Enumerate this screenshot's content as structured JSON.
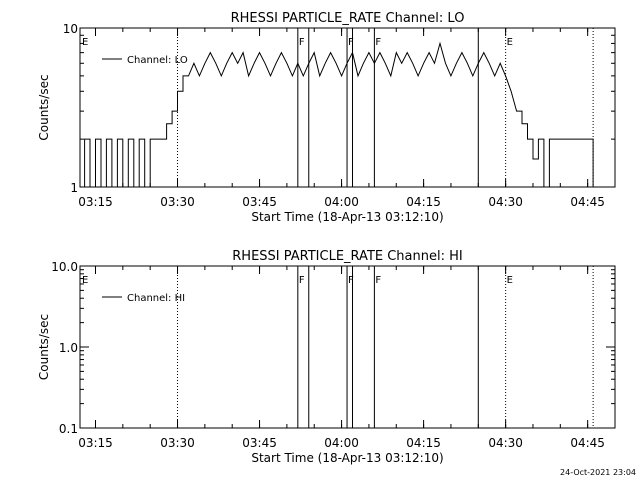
{
  "chart_data": [
    {
      "type": "line",
      "title": "RHESSI PARTICLE_RATE Channel: LO",
      "xlabel": "Start Time (18-Apr-13 03:12:10)",
      "ylabel": "Counts/sec",
      "yscale": "log",
      "ylim": [
        1,
        10
      ],
      "ytick_labels": [
        "1",
        "10"
      ],
      "xlim": [
        "03:12:10",
        "04:50:00"
      ],
      "xtick_labels": [
        "03:15",
        "03:30",
        "03:45",
        "04:00",
        "04:15",
        "04:30",
        "04:45"
      ],
      "legend_entry": "Channel: LO",
      "legend_placement": "top-left",
      "grid": false,
      "dotted_lines": [
        "03:30",
        "04:30",
        "04:46"
      ],
      "solid_lines": [
        "03:52",
        "03:54",
        "04:01",
        "04:02",
        "04:06",
        "04:25"
      ],
      "flags": [
        {
          "label": "E",
          "x": "03:12"
        },
        {
          "label": "F",
          "x": "03:52"
        },
        {
          "label": "F",
          "x": "04:01"
        },
        {
          "label": "F",
          "x": "04:06"
        },
        {
          "label": "E",
          "x": "04:30"
        }
      ],
      "series": [
        {
          "points": [
            [
              "03:13",
              1
            ],
            [
              "03:13",
              2
            ],
            [
              "03:14",
              2
            ],
            [
              "03:14",
              1
            ],
            [
              "03:15",
              1
            ],
            [
              "03:15",
              2
            ],
            [
              "03:16",
              2
            ],
            [
              "03:16",
              1
            ],
            [
              "03:17",
              1
            ],
            [
              "03:17",
              2
            ],
            [
              "03:18",
              2
            ],
            [
              "03:18",
              1
            ],
            [
              "03:19",
              1
            ],
            [
              "03:19",
              2
            ],
            [
              "03:20",
              2
            ],
            [
              "03:20",
              1
            ],
            [
              "03:21",
              1
            ],
            [
              "03:21",
              2
            ],
            [
              "03:22",
              2
            ],
            [
              "03:22",
              1
            ],
            [
              "03:23",
              1
            ],
            [
              "03:23",
              2
            ],
            [
              "03:24",
              2
            ],
            [
              "03:24",
              1
            ],
            [
              "03:25",
              1
            ],
            [
              "03:25",
              2
            ],
            [
              "03:28",
              2
            ],
            [
              "03:28",
              2.5
            ],
            [
              "03:29",
              2.5
            ],
            [
              "03:29",
              3
            ],
            [
              "03:30",
              3
            ],
            [
              "03:30",
              4
            ],
            [
              "03:31",
              4
            ],
            [
              "03:31",
              5
            ],
            [
              "03:32",
              5
            ],
            [
              "03:33",
              6
            ],
            [
              "03:34",
              5
            ],
            [
              "03:35",
              6
            ],
            [
              "03:36",
              7
            ],
            [
              "03:37",
              6
            ],
            [
              "03:38",
              5
            ],
            [
              "03:39",
              6
            ],
            [
              "03:40",
              7
            ],
            [
              "03:41",
              6
            ],
            [
              "03:42",
              7
            ],
            [
              "03:43",
              5
            ],
            [
              "03:44",
              6
            ],
            [
              "03:45",
              7
            ],
            [
              "03:46",
              6
            ],
            [
              "03:47",
              5
            ],
            [
              "03:48",
              6
            ],
            [
              "03:49",
              7
            ],
            [
              "03:50",
              6
            ],
            [
              "03:51",
              5
            ],
            [
              "03:52",
              6
            ],
            [
              "03:53",
              5
            ],
            [
              "03:54",
              6
            ],
            [
              "03:55",
              7
            ],
            [
              "03:56",
              5
            ],
            [
              "03:57",
              6
            ],
            [
              "03:58",
              7
            ],
            [
              "03:59",
              6
            ],
            [
              "04:00",
              5
            ],
            [
              "04:01",
              6
            ],
            [
              "04:02",
              7
            ],
            [
              "04:03",
              5
            ],
            [
              "04:04",
              6
            ],
            [
              "04:05",
              7
            ],
            [
              "04:06",
              6
            ],
            [
              "04:07",
              7
            ],
            [
              "04:08",
              6
            ],
            [
              "04:09",
              5
            ],
            [
              "04:10",
              7
            ],
            [
              "04:11",
              6
            ],
            [
              "04:12",
              7
            ],
            [
              "04:13",
              6
            ],
            [
              "04:14",
              5
            ],
            [
              "04:15",
              6
            ],
            [
              "04:16",
              7
            ],
            [
              "04:17",
              6
            ],
            [
              "04:18",
              8
            ],
            [
              "04:19",
              6
            ],
            [
              "04:20",
              5
            ],
            [
              "04:21",
              6
            ],
            [
              "04:22",
              7
            ],
            [
              "04:23",
              6
            ],
            [
              "04:24",
              5
            ],
            [
              "04:25",
              6
            ],
            [
              "04:26",
              7
            ],
            [
              "04:27",
              6
            ],
            [
              "04:28",
              5
            ],
            [
              "04:29",
              6
            ],
            [
              "04:30",
              5
            ],
            [
              "04:31",
              4
            ],
            [
              "04:32",
              3
            ],
            [
              "04:33",
              3
            ],
            [
              "04:33",
              2.5
            ],
            [
              "04:34",
              2.5
            ],
            [
              "04:34",
              2
            ],
            [
              "04:35",
              2
            ],
            [
              "04:35",
              1.5
            ],
            [
              "04:36",
              1.5
            ],
            [
              "04:36",
              2
            ],
            [
              "04:37",
              2
            ],
            [
              "04:37",
              1
            ],
            [
              "04:38",
              1
            ],
            [
              "04:38",
              2
            ],
            [
              "04:46",
              2
            ],
            [
              "04:46",
              1
            ]
          ]
        }
      ]
    },
    {
      "type": "line",
      "title": "RHESSI PARTICLE_RATE Channel: HI",
      "xlabel": "Start Time (18-Apr-13 03:12:10)",
      "ylabel": "Counts/sec",
      "yscale": "log",
      "ylim": [
        0.1,
        10
      ],
      "ytick_labels": [
        "0.1",
        "1.0",
        "10.0"
      ],
      "xlim": [
        "03:12:10",
        "04:50:00"
      ],
      "xtick_labels": [
        "03:15",
        "03:30",
        "03:45",
        "04:00",
        "04:15",
        "04:30",
        "04:45"
      ],
      "legend_entry": "Channel: HI",
      "legend_placement": "top-left",
      "grid": false,
      "dotted_lines": [
        "03:30",
        "04:30",
        "04:46"
      ],
      "solid_lines": [
        "03:52",
        "03:54",
        "04:01",
        "04:02",
        "04:06",
        "04:25"
      ],
      "flags": [
        {
          "label": "E",
          "x": "03:12"
        },
        {
          "label": "F",
          "x": "03:52"
        },
        {
          "label": "F",
          "x": "04:01"
        },
        {
          "label": "F",
          "x": "04:06"
        },
        {
          "label": "E",
          "x": "04:30"
        }
      ],
      "series": [
        {
          "points": []
        }
      ]
    }
  ],
  "footer": {
    "timestamp": "24-Oct-2021 23:04"
  }
}
